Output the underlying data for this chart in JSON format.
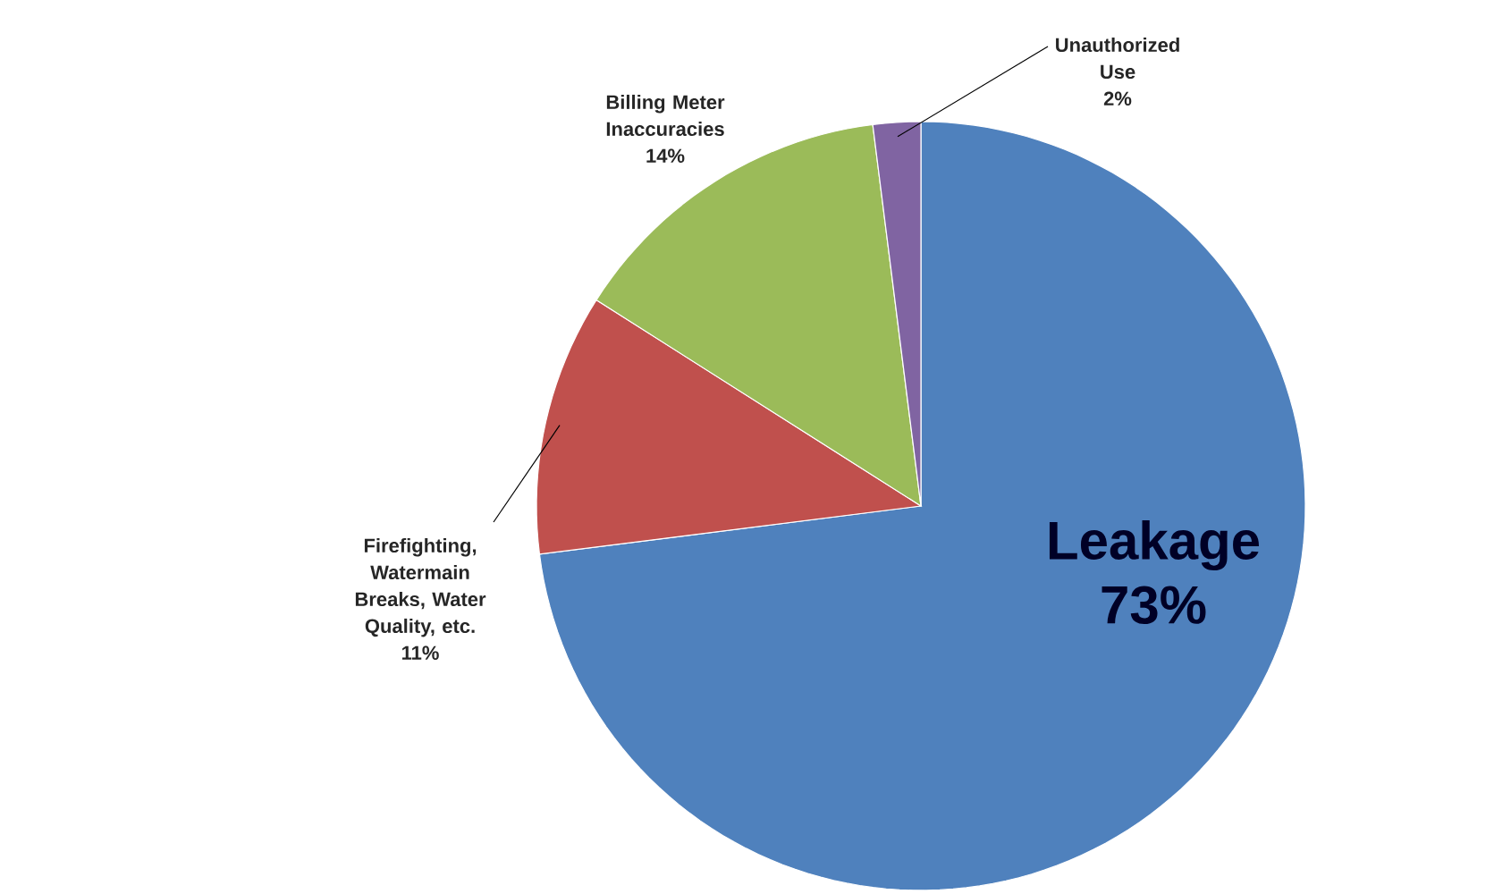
{
  "chart_data": {
    "type": "pie",
    "categories": [
      "Leakage",
      "Firefighting, Watermain Breaks, Water Quality, etc.",
      "Billing Meter Inaccuracies",
      "Unauthorized Use"
    ],
    "values": [
      73,
      11,
      14,
      2
    ],
    "colors": [
      "#4f81bd",
      "#c0504d",
      "#9bbb59",
      "#8064a2"
    ],
    "value_labels": [
      "73%",
      "11%",
      "14%",
      "2%"
    ]
  }
}
